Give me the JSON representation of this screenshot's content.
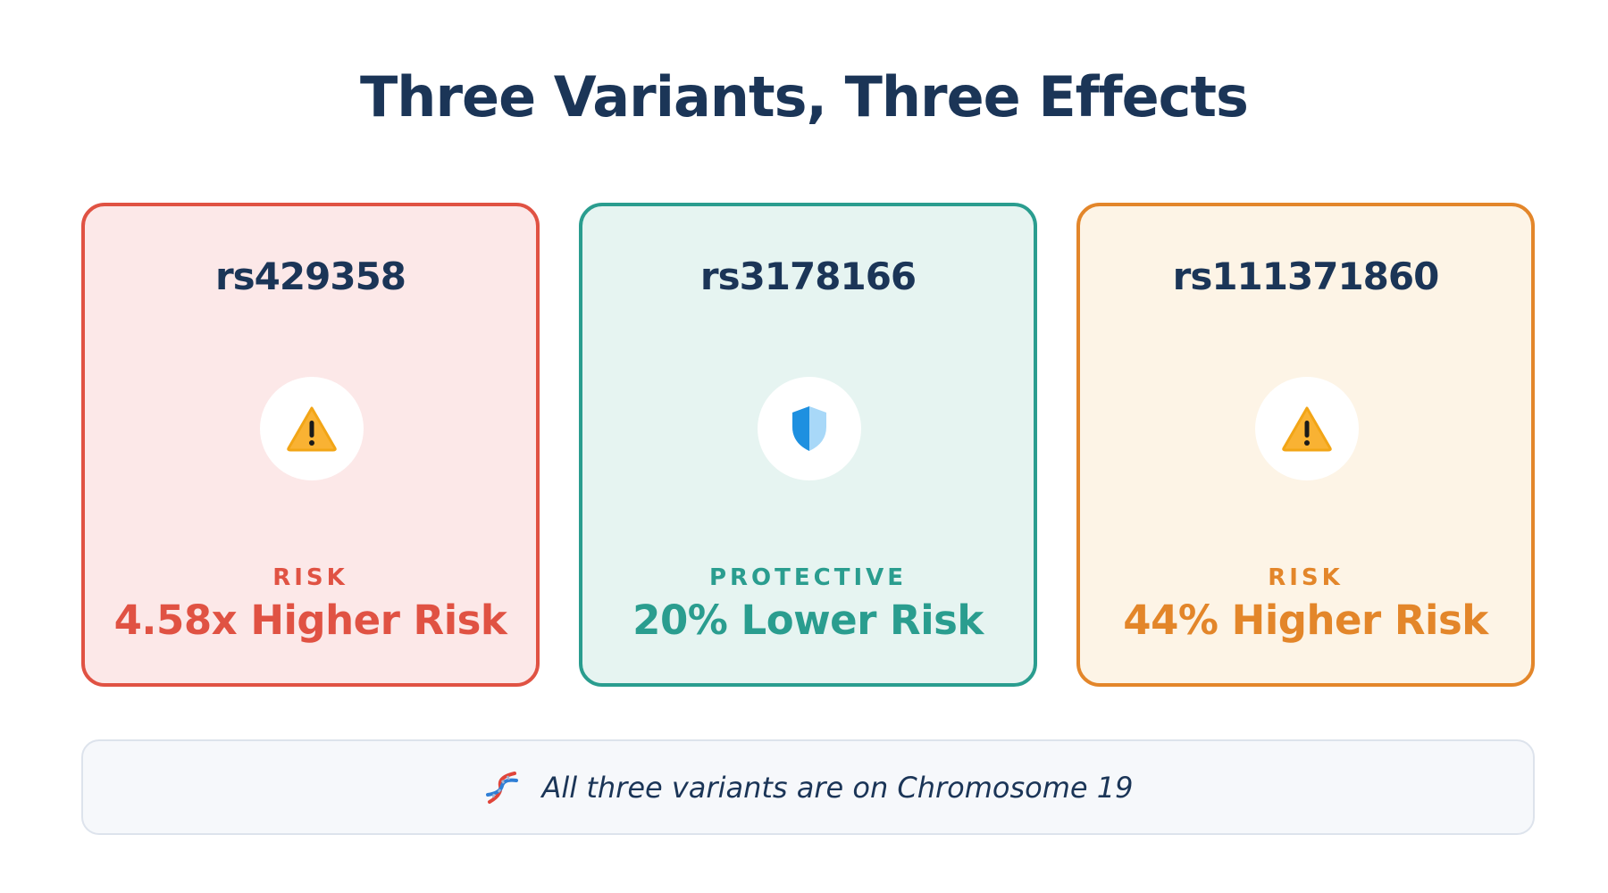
{
  "title": "Three Variants, Three Effects",
  "cards": [
    {
      "variant_id": "rs429358",
      "icon": "warning-icon",
      "effect_type": "RISK",
      "effect_value": "4.58x Higher Risk",
      "colors": {
        "border": "#e05243",
        "background": "#fce8e8",
        "accent": "#e05243"
      }
    },
    {
      "variant_id": "rs3178166",
      "icon": "shield-icon",
      "effect_type": "PROTECTIVE",
      "effect_value": "20% Lower Risk",
      "colors": {
        "border": "#2a9d8f",
        "background": "#e6f4f1",
        "accent": "#2a9d8f"
      }
    },
    {
      "variant_id": "rs111371860",
      "icon": "warning-icon",
      "effect_type": "RISK",
      "effect_value": "44% Higher Risk",
      "colors": {
        "border": "#e3862a",
        "background": "#fdf4e6",
        "accent": "#e3862a"
      }
    }
  ],
  "footer": {
    "icon": "dna-icon",
    "note": "All three variants are on Chromosome 19"
  }
}
